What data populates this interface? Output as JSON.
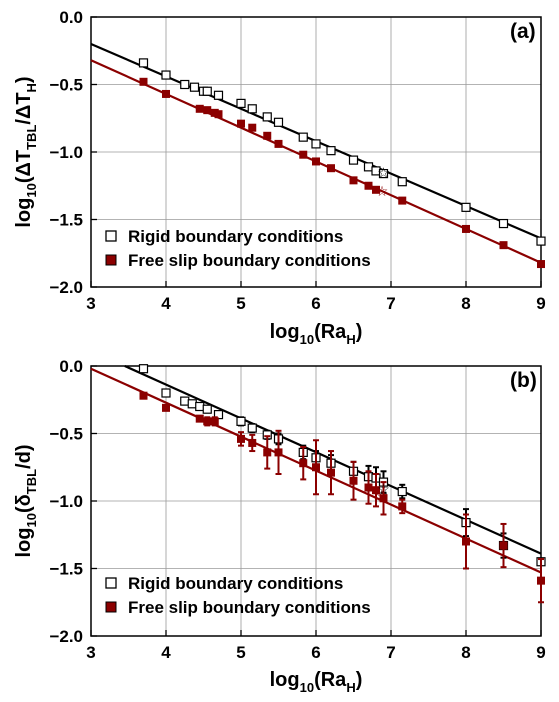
{
  "chart_data": [
    {
      "type": "scatter",
      "panel_label": "(a)",
      "xlabel": {
        "base": "log",
        "sub1": "10",
        "mid": "(Ra",
        "sub2": "H",
        "end": ")"
      },
      "ylabel": {
        "base": "log",
        "sub1": "10",
        "mid1": "(ΔT",
        "sub2": "TBL",
        "mid2": "/ΔT",
        "sub3": "H",
        "end": ")"
      },
      "xlim": [
        3,
        9
      ],
      "ylim": [
        -2.0,
        0.0
      ],
      "xticks": [
        "3",
        "4",
        "5",
        "6",
        "7",
        "8",
        "9"
      ],
      "yticks": [
        "0.0",
        "−0.5",
        "−1.0",
        "−1.5",
        "−2.0"
      ],
      "ytick_values": [
        0.0,
        -0.5,
        -1.0,
        -1.5,
        -2.0
      ],
      "xtick_values": [
        3,
        4,
        5,
        6,
        7,
        8,
        9
      ],
      "grid": true,
      "legend_position": "bottom-left",
      "series": [
        {
          "name": "Rigid boundary conditions",
          "color": "#000000",
          "marker": "open-square",
          "points": [
            [
              3.7,
              -0.34
            ],
            [
              4.0,
              -0.43
            ],
            [
              4.25,
              -0.5
            ],
            [
              4.38,
              -0.52
            ],
            [
              4.5,
              -0.55
            ],
            [
              4.55,
              -0.55
            ],
            [
              4.7,
              -0.58
            ],
            [
              5.0,
              -0.64
            ],
            [
              5.15,
              -0.68
            ],
            [
              5.35,
              -0.74
            ],
            [
              5.5,
              -0.78
            ],
            [
              5.83,
              -0.89
            ],
            [
              6.0,
              -0.94
            ],
            [
              6.2,
              -0.99
            ],
            [
              6.5,
              -1.06
            ],
            [
              6.7,
              -1.11
            ],
            [
              6.8,
              -1.14
            ],
            [
              6.9,
              -1.16
            ],
            [
              7.15,
              -1.22
            ],
            [
              8.0,
              -1.41
            ],
            [
              8.5,
              -1.53
            ],
            [
              9.0,
              -1.66
            ]
          ],
          "fit": [
            [
              3,
              -0.2
            ],
            [
              9,
              -1.64
            ]
          ]
        },
        {
          "name": "Free slip boundary conditions",
          "color": "#8b0000",
          "marker": "filled-square",
          "points": [
            [
              3.7,
              -0.48
            ],
            [
              4.0,
              -0.57
            ],
            [
              4.45,
              -0.68
            ],
            [
              4.55,
              -0.69
            ],
            [
              4.65,
              -0.71
            ],
            [
              4.7,
              -0.72
            ],
            [
              5.0,
              -0.79
            ],
            [
              5.15,
              -0.82
            ],
            [
              5.35,
              -0.88
            ],
            [
              5.5,
              -0.94
            ],
            [
              5.83,
              -1.02
            ],
            [
              6.0,
              -1.07
            ],
            [
              6.2,
              -1.12
            ],
            [
              6.5,
              -1.21
            ],
            [
              6.7,
              -1.25
            ],
            [
              6.8,
              -1.28
            ],
            [
              7.15,
              -1.36
            ],
            [
              8.0,
              -1.57
            ],
            [
              8.5,
              -1.69
            ],
            [
              9.0,
              -1.83
            ]
          ],
          "fit": [
            [
              3,
              -0.32
            ],
            [
              9,
              -1.82
            ]
          ]
        }
      ],
      "star_points": [
        {
          "x": 6.9,
          "y": -1.15,
          "color": "#000000"
        },
        {
          "x": 6.88,
          "y": -1.29,
          "color": "#8b0000"
        }
      ]
    },
    {
      "type": "scatter",
      "panel_label": "(b)",
      "xlabel": {
        "base": "log",
        "sub1": "10",
        "mid": "(Ra",
        "sub2": "H",
        "end": ")"
      },
      "ylabel": {
        "base": "log",
        "sub1": "10",
        "mid1": "(δ",
        "sub2": "TBL",
        "end": "/d)"
      },
      "xlim": [
        3,
        9
      ],
      "ylim": [
        -2.0,
        0.0
      ],
      "xticks": [
        "3",
        "4",
        "5",
        "6",
        "7",
        "8",
        "9"
      ],
      "yticks": [
        "0.0",
        "−0.5",
        "−1.0",
        "−1.5",
        "−2.0"
      ],
      "ytick_values": [
        0.0,
        -0.5,
        -1.0,
        -1.5,
        -2.0
      ],
      "xtick_values": [
        3,
        4,
        5,
        6,
        7,
        8,
        9
      ],
      "grid": true,
      "legend_position": "bottom-left",
      "series": [
        {
          "name": "Rigid boundary conditions",
          "color": "#000000",
          "marker": "open-square",
          "points": [
            [
              3.7,
              -0.02,
              0
            ],
            [
              4.0,
              -0.2,
              0
            ],
            [
              4.25,
              -0.26,
              0
            ],
            [
              4.35,
              -0.28,
              0
            ],
            [
              4.45,
              -0.3,
              0
            ],
            [
              4.55,
              -0.32,
              0
            ],
            [
              4.7,
              -0.36,
              0.02
            ],
            [
              5.0,
              -0.41,
              0.03
            ],
            [
              5.15,
              -0.46,
              0.03
            ],
            [
              5.35,
              -0.51,
              0.03
            ],
            [
              5.5,
              -0.54,
              0.04
            ],
            [
              5.83,
              -0.64,
              0.05
            ],
            [
              6.0,
              -0.68,
              0.05
            ],
            [
              6.2,
              -0.72,
              0.06
            ],
            [
              6.5,
              -0.78,
              0.07
            ],
            [
              6.7,
              -0.82,
              0.08
            ],
            [
              6.8,
              -0.83,
              0.08
            ],
            [
              6.9,
              -0.86,
              0.08
            ],
            [
              7.15,
              -0.93,
              0.05
            ],
            [
              8.0,
              -1.16,
              0.1
            ],
            [
              8.5,
              -1.33,
              0.09
            ],
            [
              9.0,
              -1.45,
              0
            ]
          ],
          "fit": [
            [
              3.45,
              0.0
            ],
            [
              9,
              -1.39
            ]
          ]
        },
        {
          "name": "Free slip boundary conditions",
          "color": "#8b0000",
          "marker": "filled-square",
          "points": [
            [
              3.7,
              -0.22,
              0
            ],
            [
              4.0,
              -0.31,
              0
            ],
            [
              4.45,
              -0.39,
              0.02
            ],
            [
              4.55,
              -0.41,
              0.03
            ],
            [
              4.65,
              -0.41,
              0.03
            ],
            [
              5.0,
              -0.54,
              0.05
            ],
            [
              5.15,
              -0.57,
              0.06
            ],
            [
              5.35,
              -0.64,
              0.12
            ],
            [
              5.5,
              -0.64,
              0.16
            ],
            [
              5.83,
              -0.72,
              0.12
            ],
            [
              6.0,
              -0.75,
              0.2
            ],
            [
              6.2,
              -0.79,
              0.16
            ],
            [
              6.5,
              -0.85,
              0.14
            ],
            [
              6.7,
              -0.9,
              0.12
            ],
            [
              6.8,
              -0.92,
              0.12
            ],
            [
              6.9,
              -0.98,
              0.12
            ],
            [
              7.15,
              -1.04,
              0.05
            ],
            [
              8.0,
              -1.3,
              0.2
            ],
            [
              8.5,
              -1.33,
              0.16
            ],
            [
              9.0,
              -1.59,
              0.16
            ]
          ],
          "fit": [
            [
              3,
              -0.02
            ],
            [
              9,
              -1.53
            ]
          ]
        }
      ],
      "star_points": [
        {
          "x": 6.9,
          "y": -0.91,
          "color": "#000000"
        },
        {
          "x": 6.88,
          "y": -0.96,
          "color": "#8b0000"
        }
      ]
    }
  ],
  "legend": {
    "rigid": "Rigid boundary conditions",
    "free": "Free slip boundary conditions"
  },
  "colors": {
    "rigid": "#000000",
    "free": "#8b0000"
  }
}
